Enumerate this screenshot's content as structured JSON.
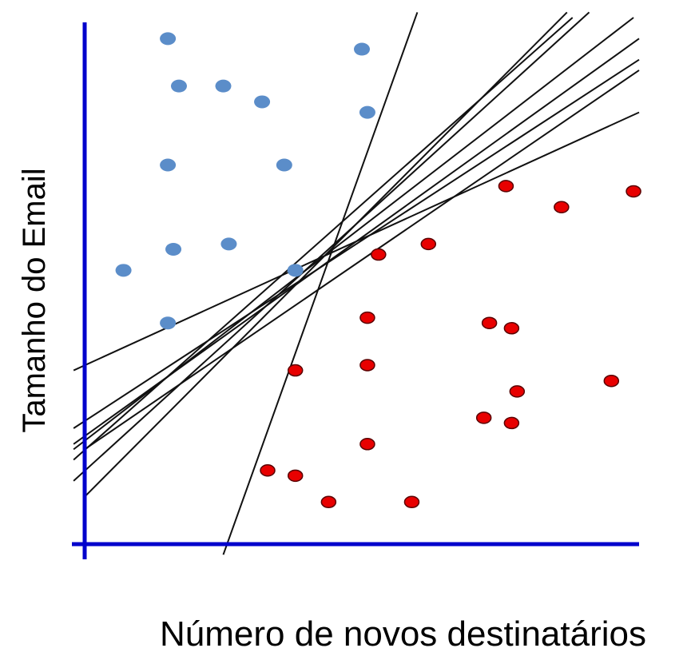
{
  "chart_data": {
    "type": "scatter",
    "title": "",
    "xlabel": "Número de novos destinatários",
    "ylabel": "Tamanho do Email",
    "xlim": [
      0,
      100
    ],
    "ylim": [
      0,
      100
    ],
    "grid": false,
    "axis_color": "#0000cc",
    "line_color": "#111111",
    "series": [
      {
        "color": "#5b8dc9",
        "points": [
          {
            "x": 15,
            "y": 96
          },
          {
            "x": 50,
            "y": 94
          },
          {
            "x": 17,
            "y": 87
          },
          {
            "x": 25,
            "y": 87
          },
          {
            "x": 32,
            "y": 84
          },
          {
            "x": 51,
            "y": 82
          },
          {
            "x": 15,
            "y": 72
          },
          {
            "x": 36,
            "y": 72
          },
          {
            "x": 16,
            "y": 56
          },
          {
            "x": 26,
            "y": 57
          },
          {
            "x": 7,
            "y": 52
          },
          {
            "x": 38,
            "y": 52
          },
          {
            "x": 15,
            "y": 42
          }
        ]
      },
      {
        "color": "#e80000",
        "points": [
          {
            "x": 76,
            "y": 68
          },
          {
            "x": 86,
            "y": 64
          },
          {
            "x": 99,
            "y": 67
          },
          {
            "x": 53,
            "y": 55
          },
          {
            "x": 62,
            "y": 57
          },
          {
            "x": 51,
            "y": 43
          },
          {
            "x": 73,
            "y": 42
          },
          {
            "x": 77,
            "y": 41
          },
          {
            "x": 38,
            "y": 33
          },
          {
            "x": 51,
            "y": 34
          },
          {
            "x": 78,
            "y": 29
          },
          {
            "x": 95,
            "y": 31
          },
          {
            "x": 72,
            "y": 24
          },
          {
            "x": 77,
            "y": 23
          },
          {
            "x": 51,
            "y": 19
          },
          {
            "x": 33,
            "y": 14
          },
          {
            "x": 38,
            "y": 13
          },
          {
            "x": 44,
            "y": 8
          },
          {
            "x": 59,
            "y": 8
          }
        ]
      }
    ],
    "lines": [
      {
        "x1": 25,
        "y1": -2,
        "x2": 60,
        "y2": 101
      },
      {
        "x1": -2,
        "y1": 33,
        "x2": 100,
        "y2": 82
      },
      {
        "x1": -2,
        "y1": 22,
        "x2": 100,
        "y2": 92
      },
      {
        "x1": -2,
        "y1": 18,
        "x2": 99,
        "y2": 100
      },
      {
        "x1": 0,
        "y1": 9,
        "x2": 87,
        "y2": 101
      },
      {
        "x1": -2,
        "y1": 12,
        "x2": 91,
        "y2": 101
      },
      {
        "x1": -2,
        "y1": 16,
        "x2": 88,
        "y2": 100
      },
      {
        "x1": -2,
        "y1": 19,
        "x2": 100,
        "y2": 96
      },
      {
        "x1": 0,
        "y1": 18,
        "x2": 100,
        "y2": 90
      }
    ]
  }
}
